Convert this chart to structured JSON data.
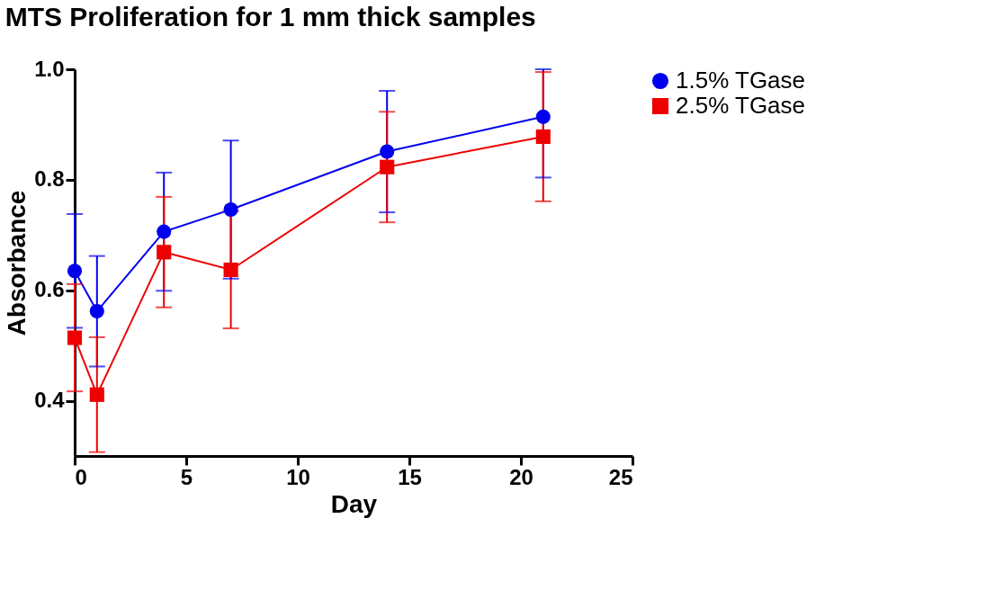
{
  "chart_data": {
    "type": "line",
    "title": "MTS Proliferation for 1 mm thick samples",
    "xlabel": "Day",
    "ylabel": "Absorbance",
    "x": [
      0,
      1,
      4,
      7,
      14,
      21
    ],
    "series": [
      {
        "name": "1.5% TGase",
        "color": "#0000ee",
        "marker": "circle",
        "values": [
          0.635,
          0.562,
          0.706,
          0.746,
          0.851,
          0.914
        ],
        "errors": [
          0.103,
          0.1,
          0.107,
          0.125,
          0.11,
          [
            0.804,
            1.0
          ]
        ]
      },
      {
        "name": "2.5% TGase",
        "color": "#ee0000",
        "marker": "square",
        "values": [
          0.514,
          0.411,
          0.669,
          0.637,
          0.823,
          0.878
        ],
        "errors": [
          0.097,
          0.104,
          0.1,
          0.106,
          0.1,
          0.117
        ]
      }
    ],
    "xlim": [
      0,
      25
    ],
    "xticks": [
      0,
      5,
      10,
      15,
      20,
      25
    ],
    "ylim": [
      0.3,
      1.0
    ],
    "yticks": [
      0.4,
      0.6,
      0.8,
      {
        "value": 1.0,
        "label": "1.0"
      }
    ],
    "grid": false,
    "legend": "right",
    "line_style": "solid"
  }
}
